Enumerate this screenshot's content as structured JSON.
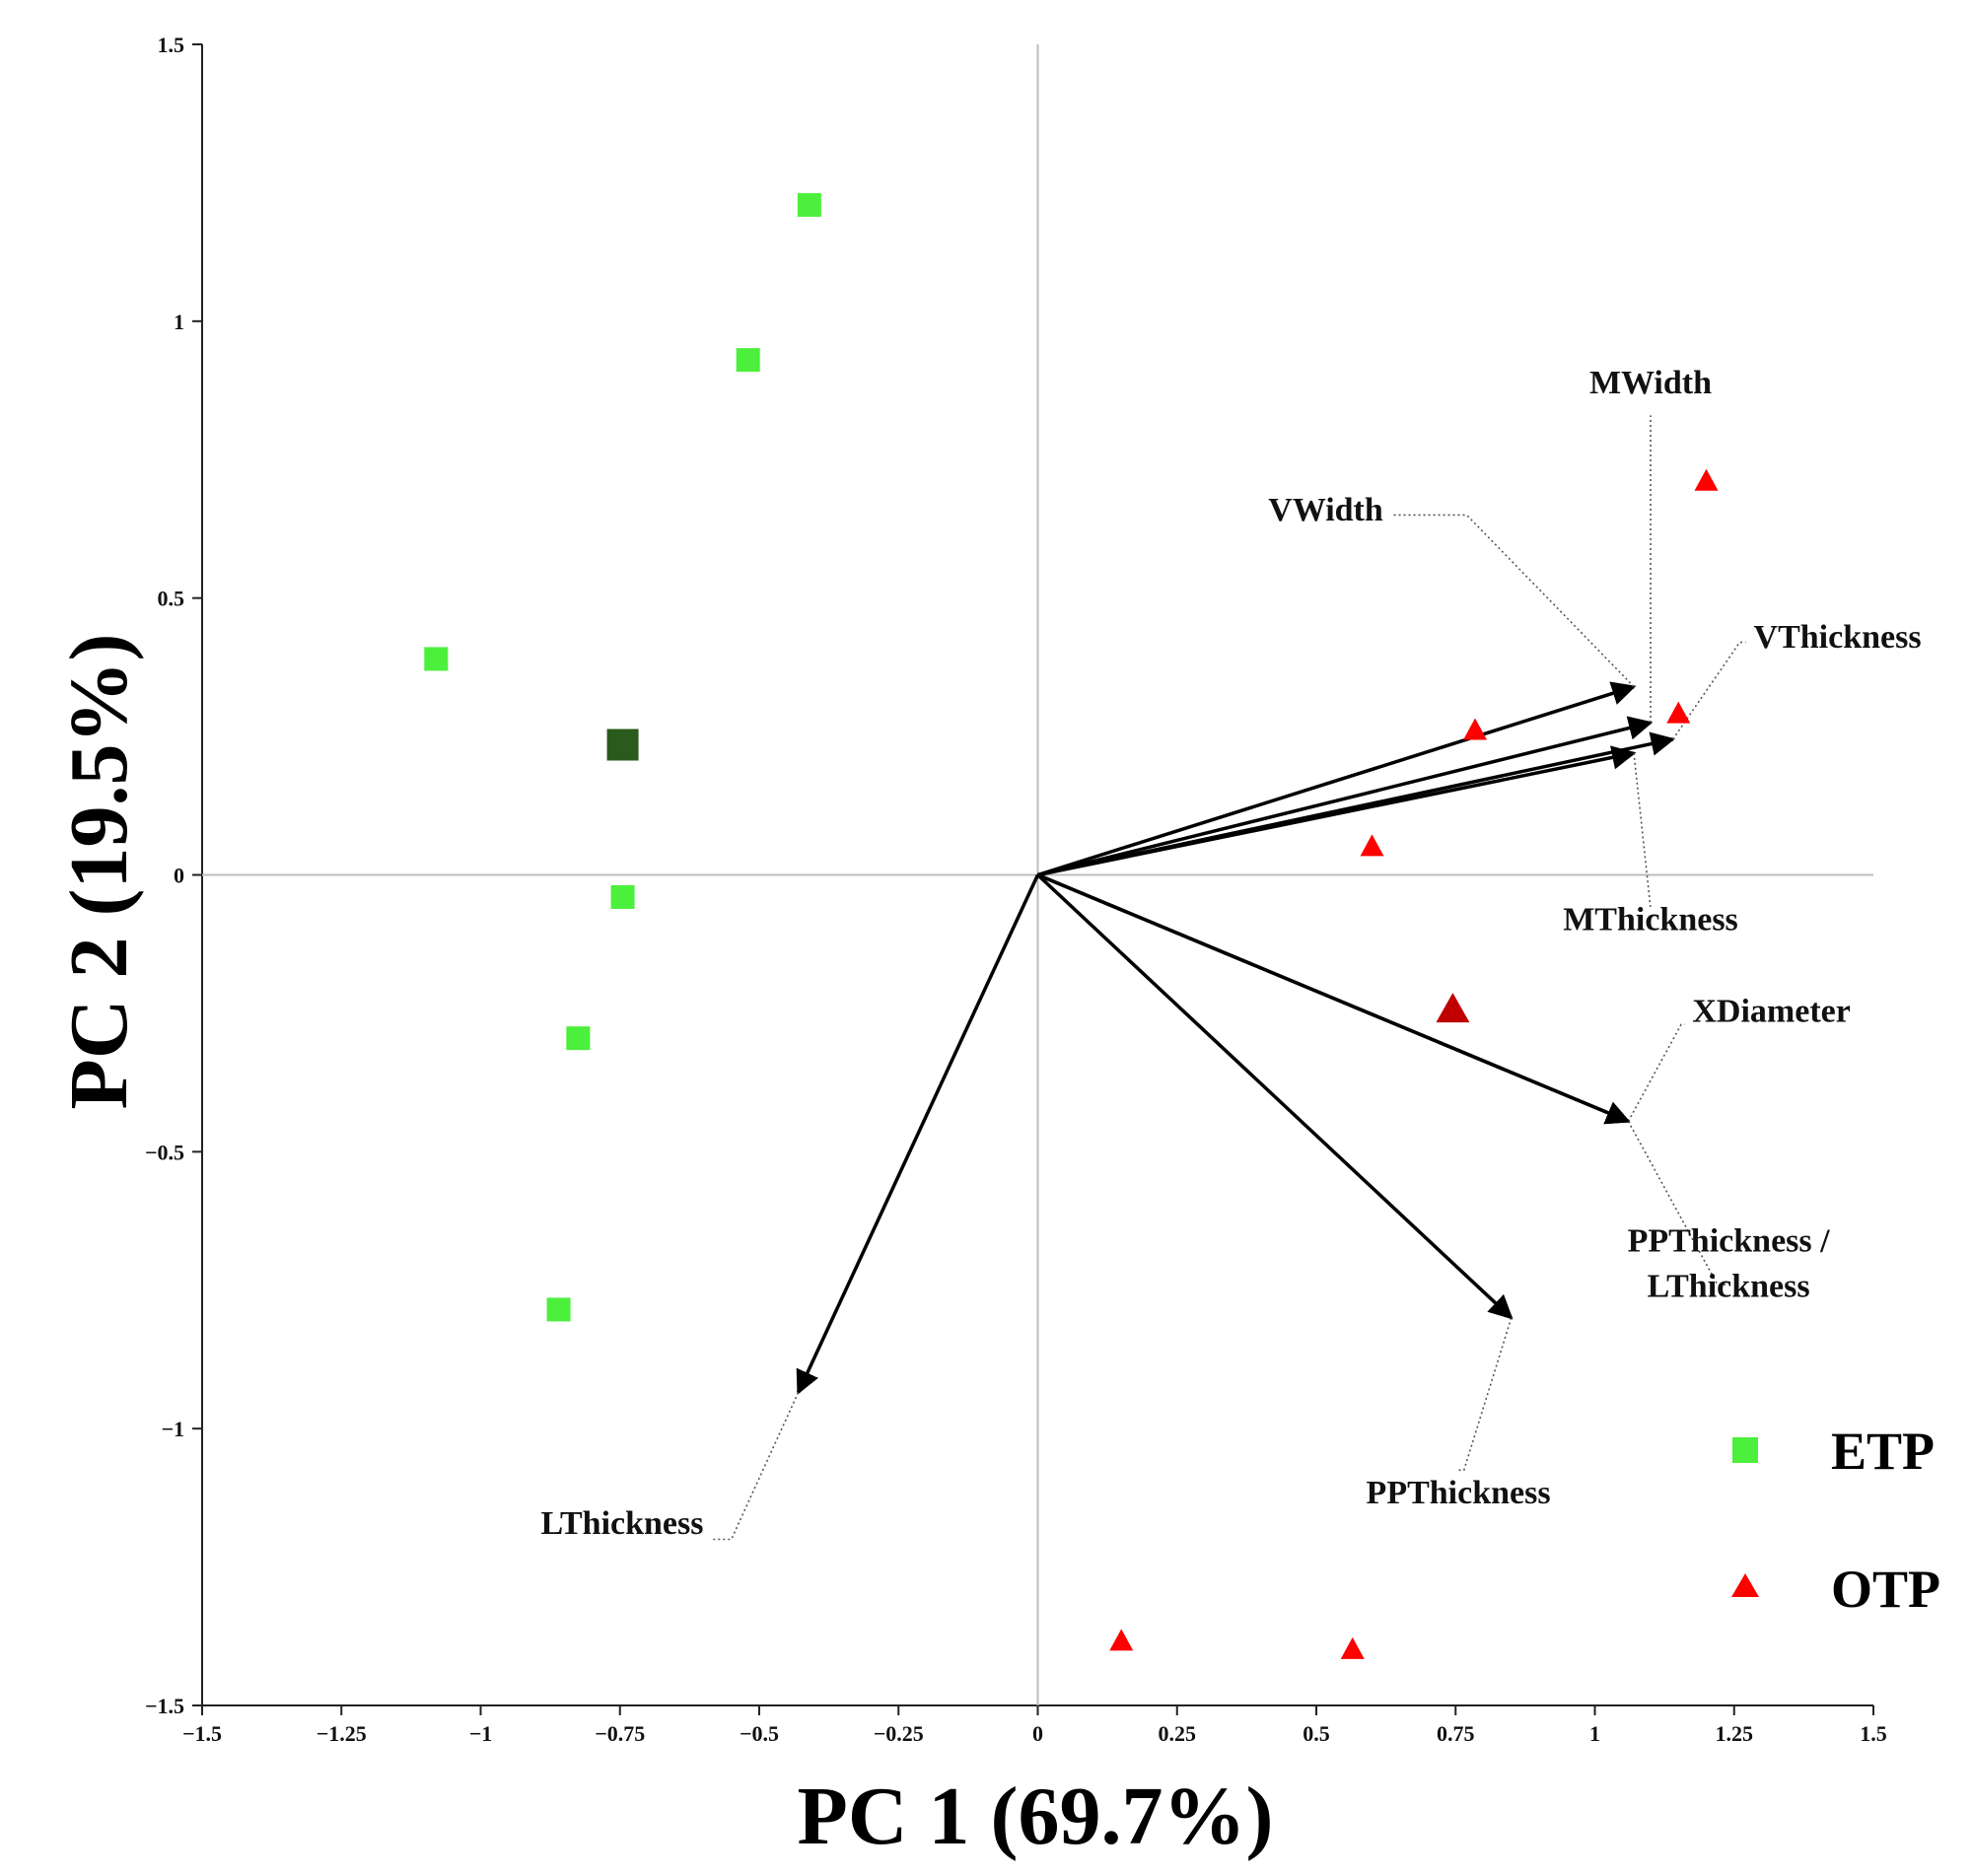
{
  "chart_data": {
    "type": "scatter",
    "title": "",
    "xlabel": "PC 1 (69.7%)",
    "ylabel": "PC 2 (19.5%)",
    "xlim": [
      -1.5,
      1.5
    ],
    "ylim": [
      -1.5,
      1.5
    ],
    "x_ticks": [
      "−1.5",
      "−1.25",
      "−1",
      "−0.75",
      "−0.5",
      "−0.25",
      "0",
      "0.25",
      "0.5",
      "0.75",
      "1",
      "1.25",
      "1.5"
    ],
    "y_ticks": [
      "1.5",
      "1",
      "0.5",
      "0",
      "−0.5",
      "−1",
      "−1.5"
    ],
    "legend": [
      {
        "name": "ETP",
        "marker": "square",
        "color": "#4cef3c"
      },
      {
        "name": "OTP",
        "marker": "triangle",
        "color": "#ff0000"
      }
    ],
    "series": [
      {
        "name": "ETP",
        "marker": "square",
        "color": "#4cef3c",
        "points": [
          {
            "x": -0.41,
            "y": 1.21
          },
          {
            "x": -0.52,
            "y": 0.93
          },
          {
            "x": -1.08,
            "y": 0.39
          },
          {
            "x": -0.745,
            "y": -0.04
          },
          {
            "x": -0.825,
            "y": -0.295
          },
          {
            "x": -0.86,
            "y": -0.785
          }
        ],
        "centroid": {
          "x": -0.745,
          "y": 0.235,
          "color": "#2a5a1c"
        }
      },
      {
        "name": "OTP",
        "marker": "triangle",
        "color": "#ff0000",
        "points": [
          {
            "x": 1.2,
            "y": 0.71
          },
          {
            "x": 1.15,
            "y": 0.29
          },
          {
            "x": 0.785,
            "y": 0.26
          },
          {
            "x": 0.6,
            "y": 0.05
          },
          {
            "x": 0.15,
            "y": -1.385
          },
          {
            "x": 0.565,
            "y": -1.4
          }
        ],
        "centroid": {
          "x": 0.745,
          "y": -0.245,
          "color": "#c00000"
        }
      }
    ],
    "loading_vectors": [
      {
        "label": "VWidth",
        "end": {
          "x": 1.07,
          "y": 0.34
        },
        "label_at": {
          "x": 0.62,
          "y": 0.64
        },
        "elbow": {
          "x": 0.77,
          "y": 0.65
        },
        "anchor": "end"
      },
      {
        "label": "MWidth",
        "end": {
          "x": 1.1,
          "y": 0.275
        },
        "label_at": {
          "x": 1.1,
          "y": 0.87
        },
        "elbow": {
          "x": 1.1,
          "y": 0.83
        },
        "anchor": "middle"
      },
      {
        "label": "VThickness",
        "end": {
          "x": 1.14,
          "y": 0.245
        },
        "label_at": {
          "x": 1.285,
          "y": 0.41
        },
        "elbow": {
          "x": 1.26,
          "y": 0.42
        },
        "anchor": "start"
      },
      {
        "label": "MThickness",
        "end": {
          "x": 1.07,
          "y": 0.22
        },
        "label_at": {
          "x": 1.1,
          "y": -0.1
        },
        "elbow": {
          "x": 1.1,
          "y": -0.06
        },
        "anchor": "middle"
      },
      {
        "label": "XDiameter",
        "end": {
          "x": 1.06,
          "y": -0.445
        },
        "label_at": {
          "x": 1.175,
          "y": -0.265
        },
        "elbow": {
          "x": 1.155,
          "y": -0.27
        },
        "anchor": "start"
      },
      {
        "label": "PPThickness / LThickness",
        "end": {
          "x": 1.06,
          "y": -0.445
        },
        "label_at": {
          "x": 1.24,
          "y": -0.68
        },
        "elbow": {
          "x": 1.22,
          "y": -0.74
        },
        "anchor": "middle",
        "second_line": "LThickness"
      },
      {
        "label": "PPThickness",
        "end": {
          "x": 0.85,
          "y": -0.8
        },
        "label_at": {
          "x": 0.755,
          "y": -1.135
        },
        "elbow": {
          "x": 0.765,
          "y": -1.075
        },
        "anchor": "middle"
      },
      {
        "label": "LThickness",
        "end": {
          "x": -0.43,
          "y": -0.935
        },
        "label_at": {
          "x": -0.6,
          "y": -1.19
        },
        "elbow": {
          "x": -0.55,
          "y": -1.2
        },
        "anchor": "end"
      }
    ]
  }
}
